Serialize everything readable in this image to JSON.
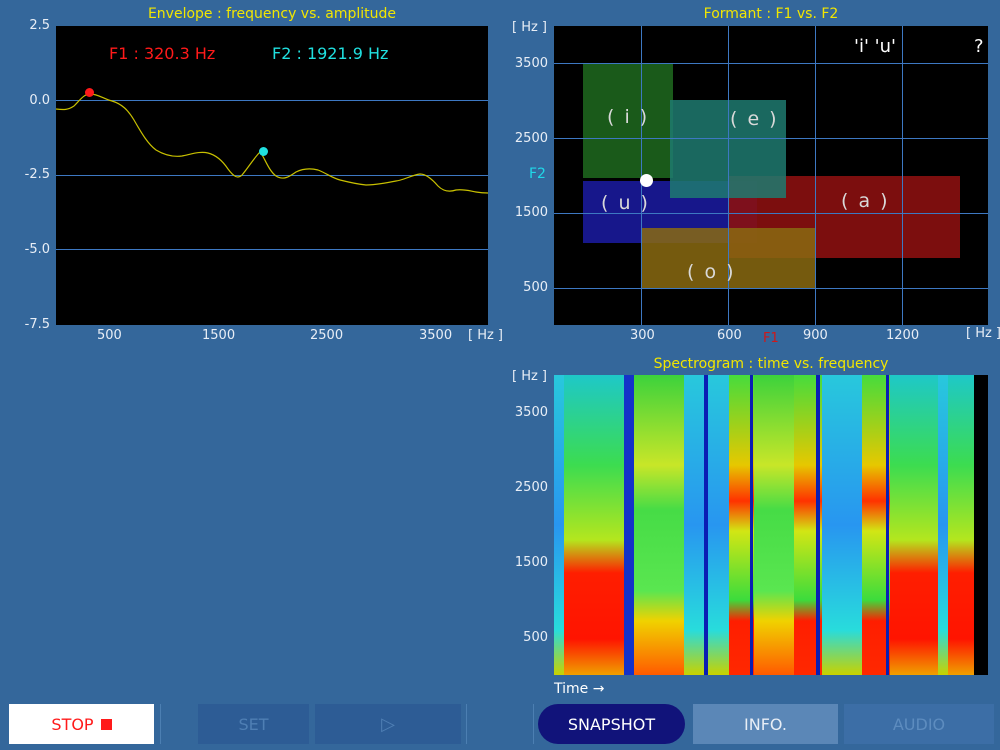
{
  "envelope": {
    "title": "Envelope : frequency vs. amplitude",
    "f1_readout": "F1 : 320.3 Hz",
    "f2_readout": "F2 : 1921.9 Hz",
    "y_ticks": [
      "2.5",
      "0.0",
      "-2.5",
      "-5.0",
      "-7.5"
    ],
    "x_ticks": [
      "500",
      "1500",
      "2500",
      "3500"
    ],
    "x_unit": "[ Hz ]",
    "f1_color": "#ff1a1a",
    "f2_color": "#20e0e0",
    "curve_color": "#c8c000"
  },
  "formant": {
    "title": "Formant : F1 vs. F2",
    "y_unit": "[ Hz ]",
    "x_unit": "[ Hz ]",
    "y_axis_name": "F2",
    "x_axis_name": "F1",
    "y_ticks": [
      "3500",
      "2500",
      "1500",
      "500"
    ],
    "x_ticks": [
      "300",
      "600",
      "900",
      "1200"
    ],
    "vowel_indicator": "'i' 'u'",
    "help_label": "?",
    "vowels": [
      {
        "label": "( i )",
        "color": "#1e6a1e"
      },
      {
        "label": "( e )",
        "color": "#1f7a70"
      },
      {
        "label": "( u )",
        "color": "#1a1a9a"
      },
      {
        "label": "( a )",
        "color": "#8a0f0f"
      },
      {
        "label": "( o )",
        "color": "#8a6a10"
      }
    ],
    "marker": {
      "f1_hz": 320,
      "f2_hz": 1920,
      "color": "#ffffff"
    }
  },
  "spectrogram": {
    "title": "Spectrogram : time vs. frequency",
    "y_unit": "[ Hz ]",
    "y_ticks": [
      "3500",
      "2500",
      "1500",
      "500"
    ],
    "x_label": "Time →"
  },
  "toolbar": {
    "stop": "STOP",
    "set": "SET",
    "play": "▷",
    "snapshot": "SNAPSHOT",
    "info": "INFO.",
    "audio": "AUDIO"
  }
}
